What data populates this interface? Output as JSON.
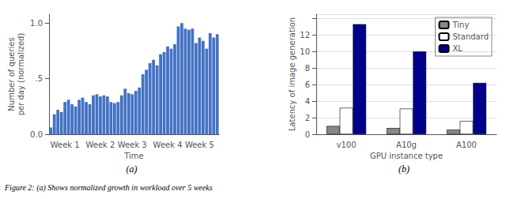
{
  "chart_data": [
    {
      "type": "bar",
      "categories": [
        null,
        null,
        null,
        null,
        "Week 1",
        null,
        null,
        null,
        null,
        null,
        null,
        null,
        null,
        null,
        "Week 2",
        null,
        null,
        null,
        null,
        null,
        null,
        null,
        null,
        "Week 3",
        null,
        null,
        null,
        null,
        null,
        null,
        null,
        null,
        null,
        "Week 4",
        null,
        null,
        null,
        null,
        null,
        null,
        null,
        null,
        "Week 5",
        null,
        null,
        null,
        null,
        null
      ],
      "values": [
        0.06,
        0.18,
        0.22,
        0.2,
        0.29,
        0.31,
        0.27,
        0.25,
        0.31,
        0.33,
        0.29,
        0.27,
        0.35,
        0.36,
        0.34,
        0.35,
        0.34,
        0.29,
        0.28,
        0.29,
        0.35,
        0.41,
        0.37,
        0.36,
        0.39,
        0.42,
        0.54,
        0.58,
        0.64,
        0.67,
        0.62,
        0.72,
        0.74,
        0.79,
        0.77,
        0.81,
        0.97,
        1.0,
        0.95,
        0.94,
        0.95,
        0.82,
        0.87,
        0.84,
        0.77,
        0.91,
        0.87,
        0.9
      ],
      "color": "#4472C4",
      "xlabel": "Time",
      "ylabel": "Number of queries\nper day (normalized)",
      "ylim": [
        0,
        1.08
      ],
      "yticks": [
        {
          "value": 0.0,
          "label": "0.0"
        },
        {
          "value": 0.5,
          "label": ".5"
        },
        {
          "value": 1.0,
          "label": "1.0"
        }
      ],
      "grid": false,
      "annotations": [
        "(a)",
        "Figure 2: (a) Shows normalized growth in workload over 5 weeks"
      ]
    },
    {
      "type": "bar",
      "categories": [
        "v100",
        "A10g",
        "A100"
      ],
      "series": [
        {
          "name": "Tiny",
          "color": "#888888",
          "values": [
            1.0,
            0.75,
            0.55
          ]
        },
        {
          "name": "Standard",
          "color": "#ffffff",
          "values": [
            3.2,
            3.1,
            1.6
          ]
        },
        {
          "name": "XL",
          "color": "#00008B",
          "values": [
            13.3,
            10.0,
            6.2
          ]
        }
      ],
      "xlabel": "GPU instance type",
      "ylabel": "Latency of image generation",
      "ylim": [
        0,
        14.5
      ],
      "yticks": [
        0,
        2,
        4,
        6,
        8,
        10,
        12
      ],
      "grid": true,
      "legend": "upper right",
      "annotations": [
        "(b)"
      ]
    }
  ]
}
